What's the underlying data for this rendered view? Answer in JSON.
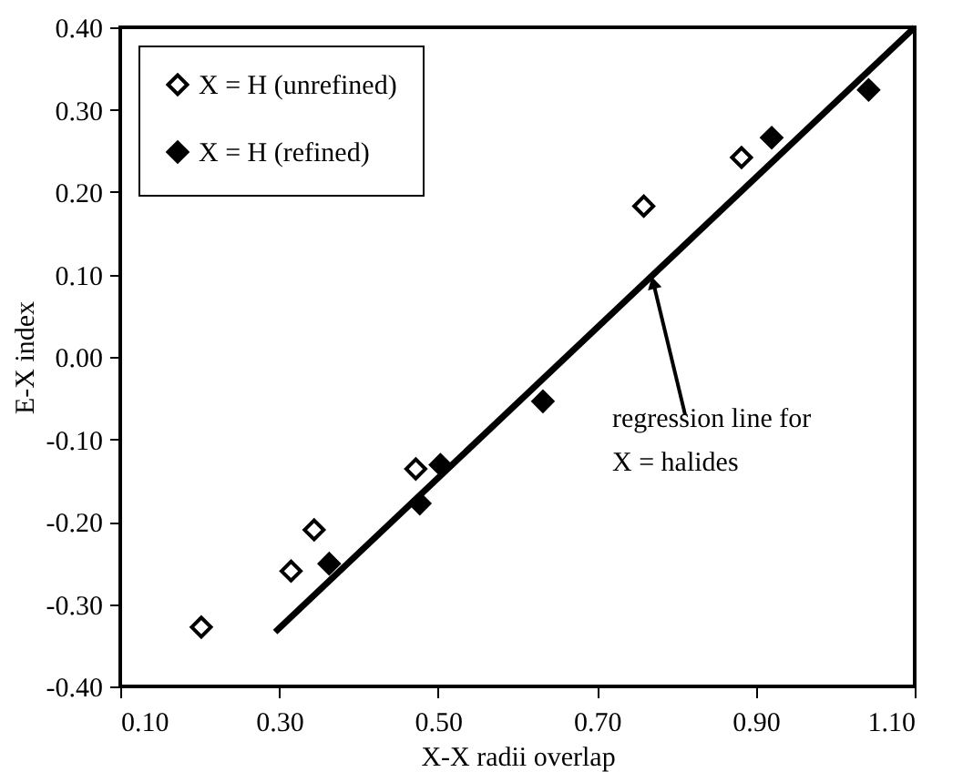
{
  "chart_data": {
    "type": "scatter",
    "xlabel": "X-X radii overlap",
    "ylabel": "E-X index",
    "series": [
      {
        "name": "X = H (unrefined)",
        "color": "#ffffff",
        "marker": "diamond",
        "x": [
          0.202,
          0.315,
          0.344,
          0.472,
          0.759,
          0.882
        ],
        "values": [
          -0.328,
          -0.26,
          -0.21,
          -0.136,
          0.183,
          0.242
        ]
      },
      {
        "name": "X = H (refined)",
        "color": "#000000",
        "marker": "diamond",
        "x": [
          0.363,
          0.477,
          0.503,
          0.632,
          0.92,
          1.042
        ],
        "values": [
          -0.251,
          -0.178,
          -0.131,
          -0.054,
          0.266,
          0.324
        ]
      },
      {
        "type": "line",
        "color": "#000000",
        "x": [
          0.295,
          1.1
        ],
        "values": [
          -0.334,
          0.4
        ]
      }
    ],
    "annotations": [
      {
        "text": "regression line for\nX = halides",
        "x": 0.771,
        "y": 0.09
      }
    ],
    "xlim": [
      0.1,
      1.1
    ],
    "xticks": [
      {
        "value": 0.1,
        "label": "0.10"
      },
      {
        "value": 0.3,
        "label": "0.30"
      },
      {
        "value": 0.5,
        "label": "0.50"
      },
      {
        "value": 0.7,
        "label": "0.70"
      },
      {
        "value": 0.9,
        "label": "0.90"
      },
      {
        "value": 1.1,
        "label": "1.10"
      }
    ],
    "ylim": [
      -0.4,
      0.4
    ],
    "yticks": [
      {
        "value": -0.4,
        "label": "-0.40"
      },
      {
        "value": -0.3,
        "label": "-0.30"
      },
      {
        "value": -0.2,
        "label": "-0.20"
      },
      {
        "value": -0.1,
        "label": "-0.10"
      },
      {
        "value": 0.0,
        "label": "0.00"
      },
      {
        "value": 0.1,
        "label": "0.10"
      },
      {
        "value": 0.2,
        "label": "0.20"
      },
      {
        "value": 0.3,
        "label": "0.30"
      },
      {
        "value": 0.4,
        "label": "0.40"
      }
    ],
    "grid": false,
    "legend": "top left"
  }
}
